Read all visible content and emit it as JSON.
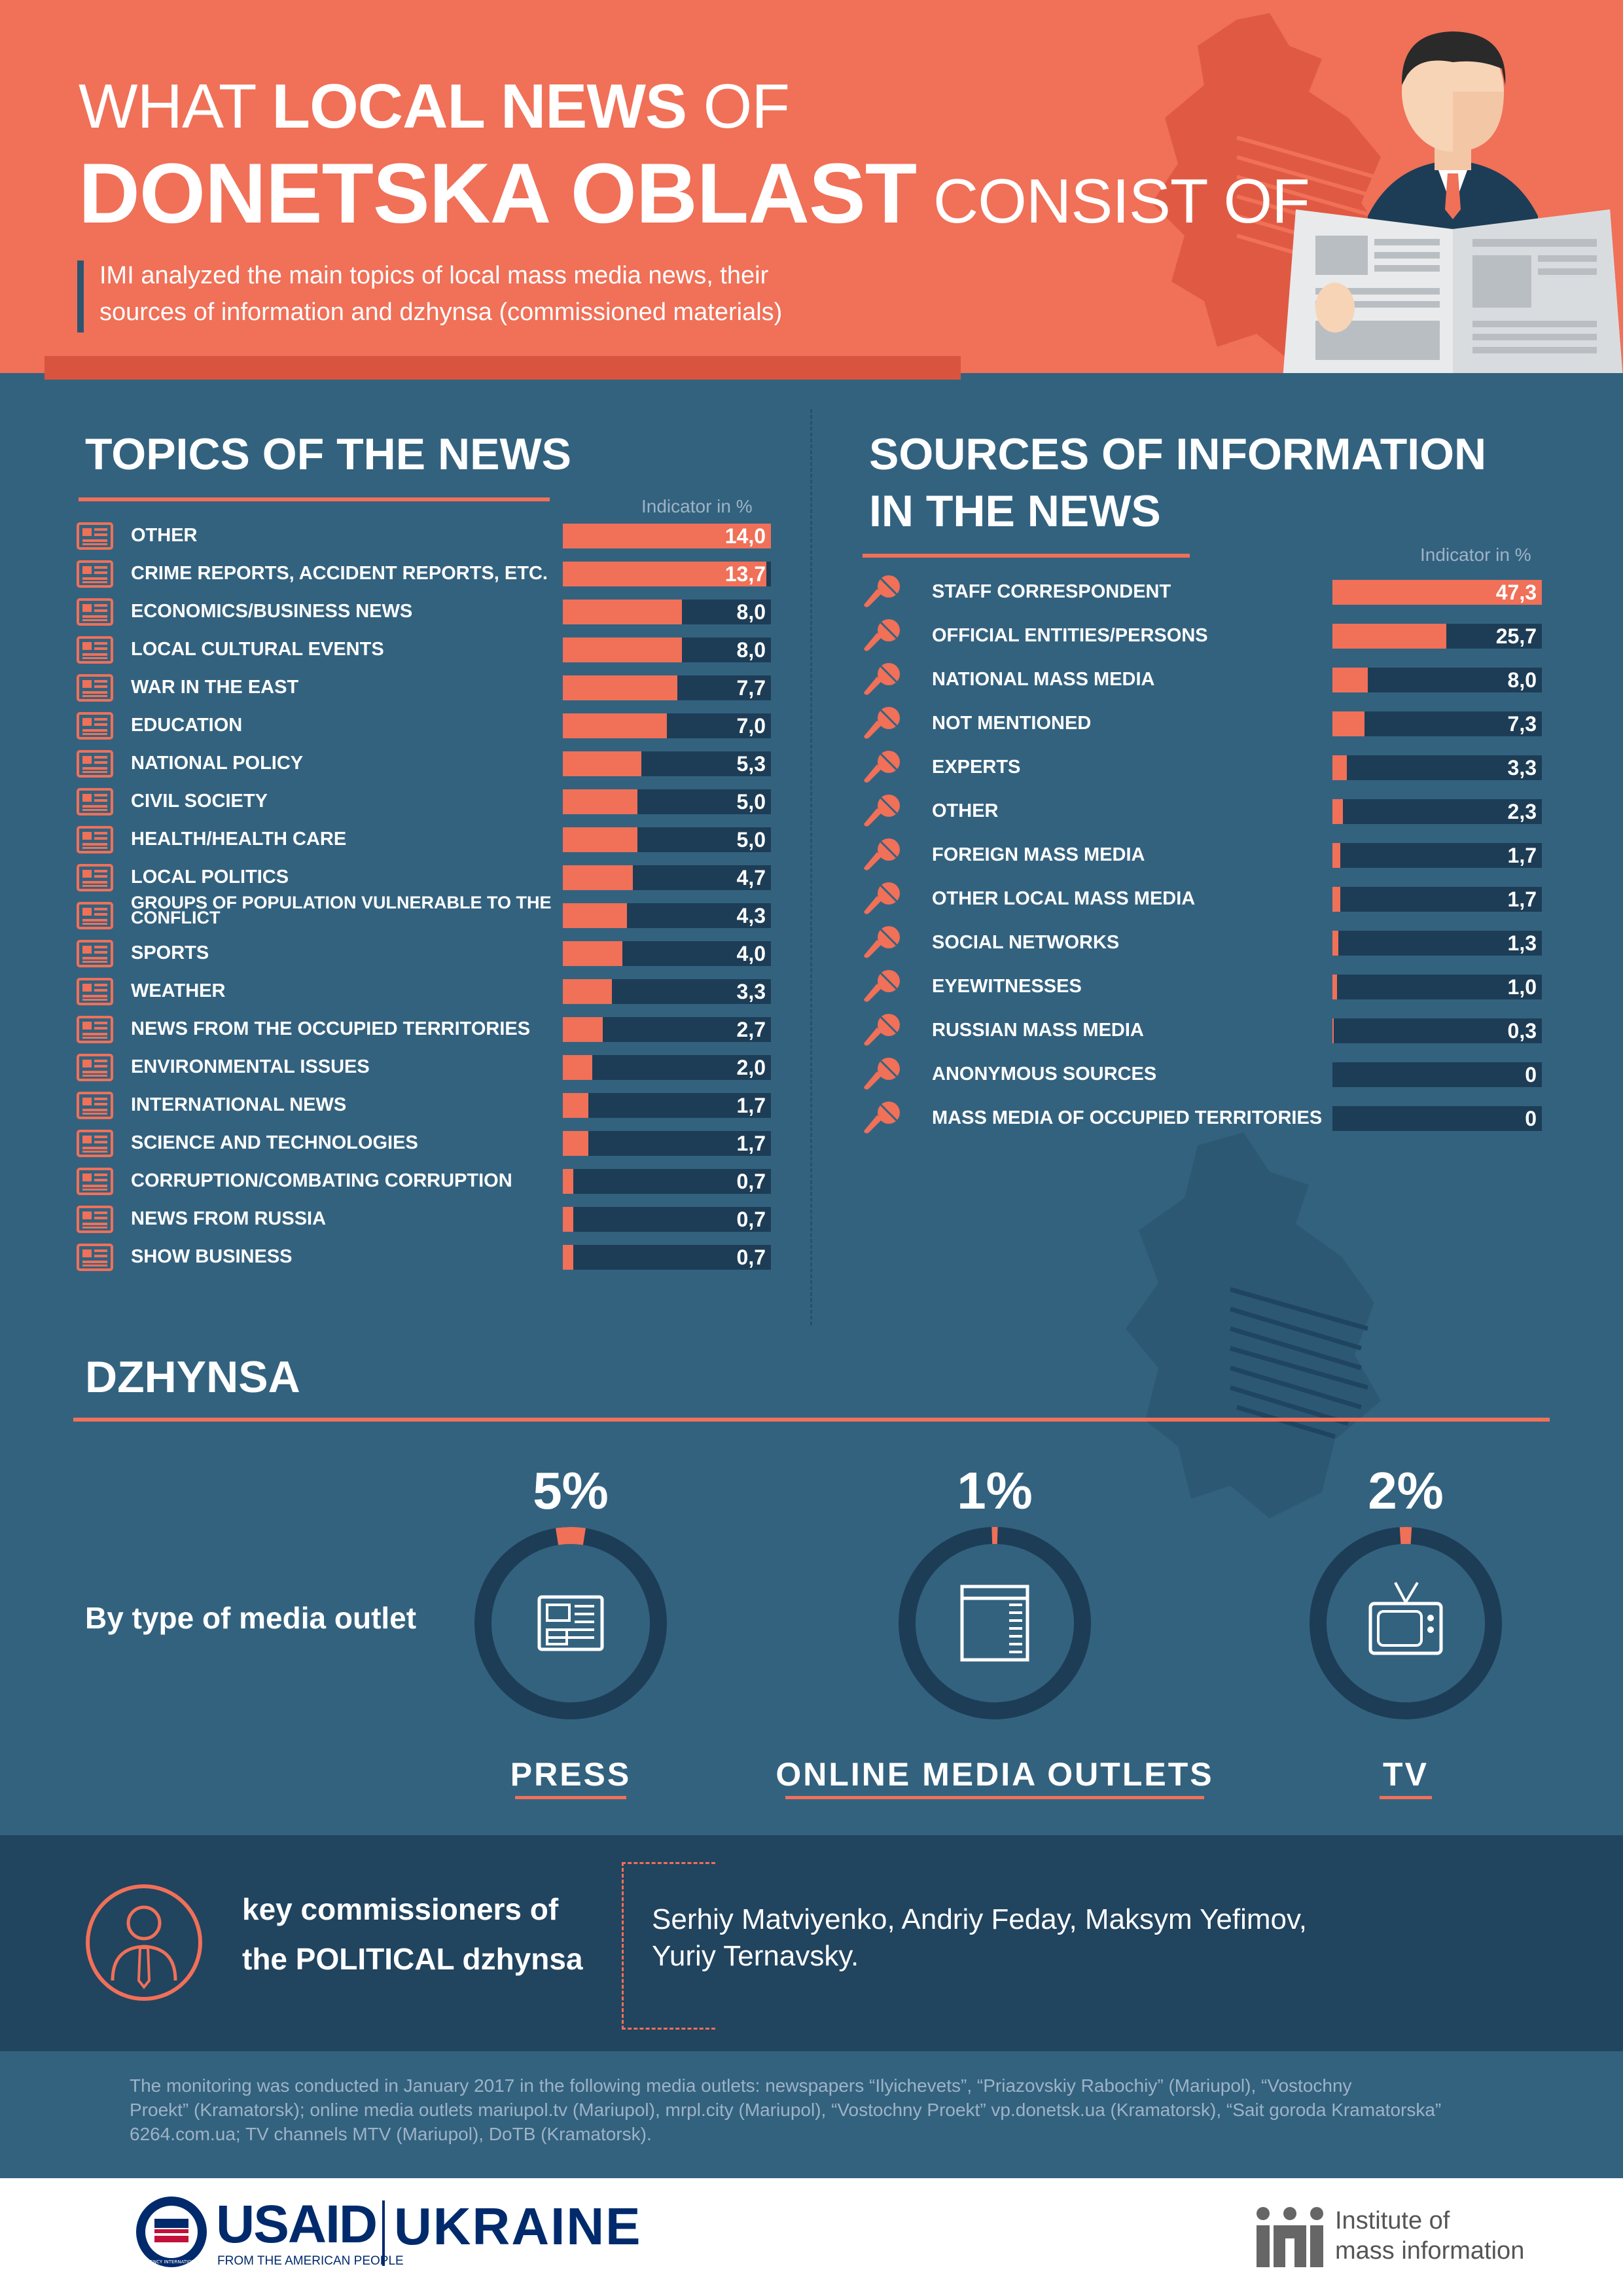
{
  "header": {
    "title_w1": "WHAT ",
    "title_w2": "LOCAL NEWS",
    "title_w3": " OF",
    "title_w4": "DONETSKA OBLAST",
    "title_w5": " CONSIST OF",
    "subtitle_line1": "IMI analyzed the main topics of local mass media news, their",
    "subtitle_line2": "sources of information and dzhynsa (commissioned materials)"
  },
  "colors": {
    "accent": "#f07058",
    "background": "#33627f",
    "track": "#1d3d56",
    "dark_band": "#21445f"
  },
  "topics": {
    "title": "TOPICS OF THE NEWS",
    "indicator_label": "Indicator in %",
    "icon": "newspaper-icon"
  },
  "sources": {
    "title_line1": "SOURCES OF INFORMATION",
    "title_line2": "IN THE NEWS",
    "indicator_label": "Indicator in %",
    "icon": "microphone-icon"
  },
  "chart_data": [
    {
      "type": "bar",
      "title": "TOPICS OF THE NEWS",
      "ylabel": "Indicator in %",
      "categories": [
        "OTHER",
        "CRIME REPORTS, ACCIDENT REPORTS, ETC.",
        "ECONOMICS/BUSINESS NEWS",
        "LOCAL CULTURAL EVENTS",
        "WAR IN THE EAST",
        "EDUCATION",
        "NATIONAL POLICY",
        "CIVIL SOCIETY",
        "HEALTH/HEALTH CARE",
        "LOCAL POLITICS",
        "GROUPS OF POPULATION VULNERABLE TO THE CONFLICT",
        "SPORTS",
        "WEATHER",
        "NEWS FROM THE OCCUPIED TERRITORIES",
        "ENVIRONMENTAL ISSUES",
        "INTERNATIONAL NEWS",
        "SCIENCE AND TECHNOLOGIES",
        "CORRUPTION/COMBATING CORRUPTION",
        "NEWS FROM RUSSIA",
        "SHOW BUSINESS"
      ],
      "values": [
        14.0,
        13.7,
        8.0,
        8.0,
        7.7,
        7.0,
        5.3,
        5.0,
        5.0,
        4.7,
        4.3,
        4.0,
        3.3,
        2.7,
        2.0,
        1.7,
        1.7,
        0.7,
        0.7,
        0.7
      ],
      "value_labels": [
        "14,0",
        "13,7",
        "8,0",
        "8,0",
        "7,7",
        "7,0",
        "5,3",
        "5,0",
        "5,0",
        "4,7",
        "4,3",
        "4,0",
        "3,3",
        "2,7",
        "2,0",
        "1,7",
        "1,7",
        "0,7",
        "0,7",
        "0,7"
      ],
      "ylim": [
        0,
        14
      ]
    },
    {
      "type": "bar",
      "title": "SOURCES OF INFORMATION IN THE NEWS",
      "ylabel": "Indicator in %",
      "categories": [
        "STAFF CORRESPONDENT",
        "OFFICIAL ENTITIES/PERSONS",
        "NATIONAL MASS MEDIA",
        "NOT MENTIONED",
        "EXPERTS",
        "OTHER",
        "FOREIGN MASS MEDIA",
        "OTHER LOCAL MASS MEDIA",
        "SOCIAL NETWORKS",
        "EYEWITNESSES",
        "RUSSIAN MASS MEDIA",
        "ANONYMOUS SOURCES",
        "MASS MEDIA OF OCCUPIED TERRITORIES"
      ],
      "values": [
        47.3,
        25.7,
        8.0,
        7.3,
        3.3,
        2.3,
        1.7,
        1.7,
        1.3,
        1.0,
        0.3,
        0,
        0
      ],
      "value_labels": [
        "47,3",
        "25,7",
        "8,0",
        "7,3",
        "3,3",
        "2,3",
        "1,7",
        "1,7",
        "1,3",
        "1,0",
        "0,3",
        "0",
        "0"
      ],
      "ylim": [
        0,
        47.3
      ]
    },
    {
      "type": "pie",
      "title": "DZHYNSA",
      "categories": [
        "PRESS",
        "ONLINE MEDIA OUTLETS",
        "TV"
      ],
      "values": [
        5,
        1,
        2
      ],
      "value_labels": [
        "5%",
        "1%",
        "2%"
      ]
    }
  ],
  "dzhynsa": {
    "title": "DZHYNSA",
    "by_type": "By type of media outlet",
    "outlets": [
      {
        "label": "PRESS",
        "pct": "5%",
        "value": 5,
        "icon": "newspaper-icon"
      },
      {
        "label": "ONLINE MEDIA OUTLETS",
        "pct": "1%",
        "value": 1,
        "icon": "browser-window-icon"
      },
      {
        "label": "TV",
        "pct": "2%",
        "value": 2,
        "icon": "tv-icon"
      }
    ]
  },
  "commissioners": {
    "label_line1": "key commissioners of",
    "label_line2": "the POLITICAL dzhynsa",
    "names_line1": "Serhiy Matviyenko, Andriy Feday, Maksym Yefimov,",
    "names_line2": "Yuriy Ternavsky.",
    "icon": "person-tie-icon"
  },
  "footnote": {
    "line1": "The monitoring was conducted in January 2017 in the following media outlets: newspapers “Ilyichevets”, “Priazovskiy Rabochiy” (Mariupol), “Vostochny",
    "line2": "Proekt” (Kramatorsk); online media outlets mariupol.tv (Mariupol), mrpl.city (Mariupol), “Vostochny Proekt” vp.donetsk.ua (Kramatorsk), “Sait goroda Kramatorska”",
    "line3": "6264.com.ua; TV channels MTV (Mariupol), DoTB (Kramatorsk)."
  },
  "footer": {
    "usaid": "USAID",
    "from": "FROM THE AMERICAN PEOPLE",
    "ukraine": "UKRAINE",
    "seal_text": "UNITED STATES AGENCY INTERNATIONAL DEVELOPMENT",
    "imi_line1": "Institute of",
    "imi_line2": "mass information"
  }
}
